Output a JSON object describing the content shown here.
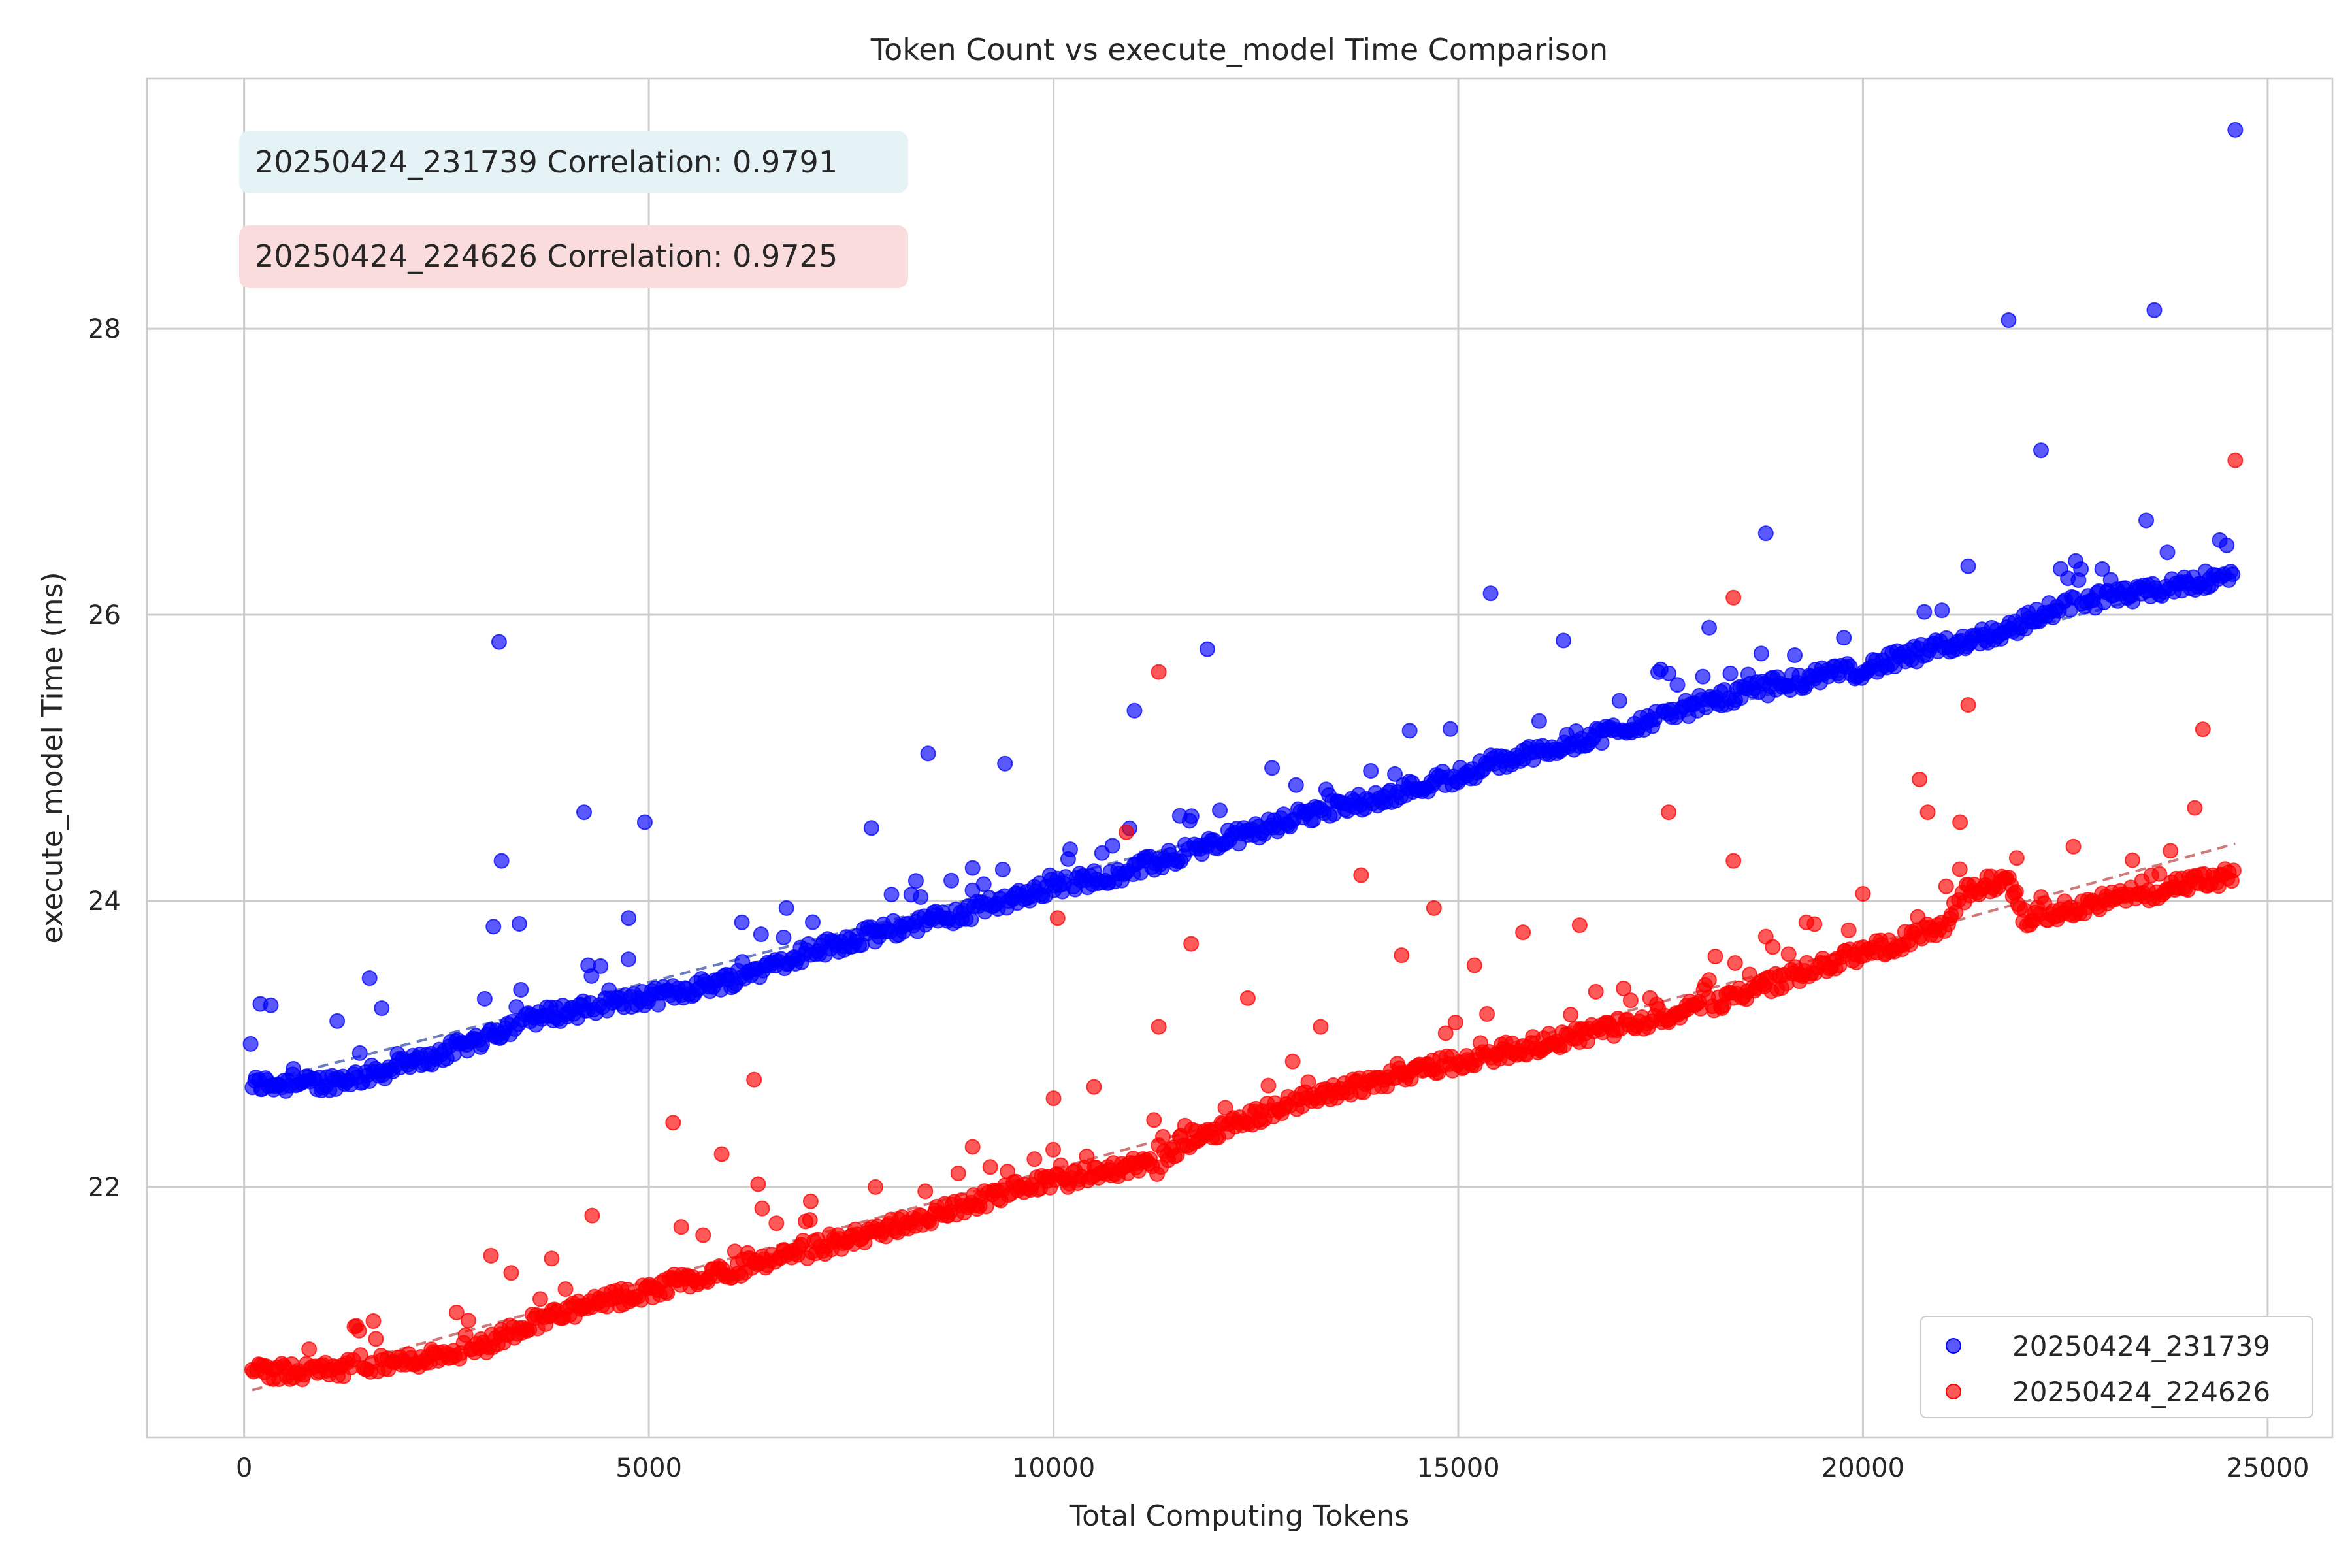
{
  "chart_data": {
    "type": "scatter",
    "title": "Token Count vs execute_model Time Comparison",
    "xlabel": "Total Computing Tokens",
    "ylabel": "execute_model Time (ms)",
    "xlim": [
      -1200,
      25800
    ],
    "ylim": [
      20.25,
      29.75
    ],
    "xticks": [
      0,
      5000,
      10000,
      15000,
      20000,
      25000
    ],
    "yticks": [
      22,
      24,
      26,
      28
    ],
    "grid": true,
    "legend_position": "lower-right",
    "annotations": [
      {
        "text": "20250424_231739 Correlation: 0.9791",
        "bg": "#e6f3f6"
      },
      {
        "text": "20250424_224626 Correlation: 0.9725",
        "bg": "#f9dcdb"
      }
    ],
    "series": [
      {
        "name": "20250424_231739",
        "color": "#0000ff",
        "trend": [
          [
            100,
            22.72
          ],
          [
            24600,
            26.28
          ]
        ],
        "trend_color": "#5b6fb8",
        "outliers": [
          [
            80,
            23.0
          ],
          [
            200,
            23.28
          ],
          [
            330,
            23.27
          ],
          [
            1150,
            23.16
          ],
          [
            1550,
            23.46
          ],
          [
            1700,
            23.25
          ],
          [
            3150,
            25.81
          ],
          [
            3180,
            24.28
          ],
          [
            3080,
            23.82
          ],
          [
            3400,
            23.84
          ],
          [
            4200,
            24.62
          ],
          [
            4250,
            23.55
          ],
          [
            4950,
            24.55
          ],
          [
            4750,
            23.88
          ],
          [
            6150,
            23.85
          ],
          [
            6700,
            23.95
          ],
          [
            7750,
            24.51
          ],
          [
            8450,
            25.03
          ],
          [
            8300,
            24.14
          ],
          [
            9000,
            24.23
          ],
          [
            9400,
            24.96
          ],
          [
            11000,
            25.33
          ],
          [
            11900,
            25.76
          ],
          [
            12700,
            24.93
          ],
          [
            14400,
            25.19
          ],
          [
            15400,
            26.15
          ],
          [
            16300,
            25.82
          ],
          [
            17600,
            25.59
          ],
          [
            18100,
            25.91
          ],
          [
            18800,
            26.57
          ],
          [
            21800,
            28.06
          ],
          [
            22200,
            27.15
          ],
          [
            23600,
            28.13
          ],
          [
            23500,
            26.66
          ],
          [
            24600,
            29.39
          ],
          [
            21300,
            26.34
          ]
        ],
        "segments": [
          [
            100,
            22.72
          ],
          [
            900,
            22.72
          ],
          [
            1500,
            22.78
          ],
          [
            2300,
            22.9
          ],
          [
            3000,
            23.05
          ],
          [
            3500,
            23.18
          ],
          [
            5000,
            23.32
          ],
          [
            6000,
            23.45
          ],
          [
            7000,
            23.65
          ],
          [
            8000,
            23.8
          ],
          [
            9000,
            23.93
          ],
          [
            10000,
            24.1
          ],
          [
            11000,
            24.22
          ],
          [
            12000,
            24.4
          ],
          [
            13000,
            24.58
          ],
          [
            14000,
            24.72
          ],
          [
            15000,
            24.88
          ],
          [
            16000,
            25.05
          ],
          [
            17000,
            25.2
          ],
          [
            18000,
            25.38
          ],
          [
            19000,
            25.52
          ],
          [
            20000,
            25.62
          ],
          [
            21000,
            25.78
          ],
          [
            21800,
            25.9
          ],
          [
            22500,
            26.08
          ],
          [
            23500,
            26.15
          ],
          [
            24600,
            26.3
          ]
        ]
      },
      {
        "name": "20250424_224626",
        "color": "#ff0000",
        "trend": [
          [
            100,
            20.58
          ],
          [
            24600,
            24.4
          ]
        ],
        "trend_color": "#c96b6b",
        "outliers": [
          [
            3050,
            21.52
          ],
          [
            3300,
            21.4
          ],
          [
            3800,
            21.5
          ],
          [
            4300,
            21.8
          ],
          [
            5300,
            22.45
          ],
          [
            5400,
            21.72
          ],
          [
            5900,
            22.23
          ],
          [
            6300,
            22.75
          ],
          [
            6350,
            22.02
          ],
          [
            6400,
            21.85
          ],
          [
            7000,
            21.9
          ],
          [
            7800,
            22.0
          ],
          [
            9000,
            22.28
          ],
          [
            10000,
            22.62
          ],
          [
            10050,
            23.88
          ],
          [
            10500,
            22.7
          ],
          [
            10900,
            24.48
          ],
          [
            11300,
            25.6
          ],
          [
            11300,
            23.12
          ],
          [
            11700,
            23.7
          ],
          [
            12400,
            23.32
          ],
          [
            13300,
            23.12
          ],
          [
            13800,
            24.18
          ],
          [
            14300,
            23.62
          ],
          [
            14700,
            23.95
          ],
          [
            15200,
            23.55
          ],
          [
            15800,
            23.78
          ],
          [
            16500,
            23.83
          ],
          [
            17600,
            24.62
          ],
          [
            18400,
            26.12
          ],
          [
            18400,
            24.28
          ],
          [
            18800,
            23.75
          ],
          [
            19300,
            23.85
          ],
          [
            20000,
            24.05
          ],
          [
            20700,
            24.85
          ],
          [
            20800,
            24.62
          ],
          [
            21200,
            24.55
          ],
          [
            21300,
            25.37
          ],
          [
            21900,
            24.3
          ],
          [
            22600,
            24.38
          ],
          [
            23800,
            24.35
          ],
          [
            24100,
            24.65
          ],
          [
            24200,
            25.2
          ],
          [
            24600,
            27.08
          ]
        ],
        "segments": [
          [
            100,
            20.7
          ],
          [
            1000,
            20.72
          ],
          [
            2000,
            20.78
          ],
          [
            3000,
            20.9
          ],
          [
            3500,
            21.05
          ],
          [
            5000,
            21.28
          ],
          [
            6500,
            21.48
          ],
          [
            8000,
            21.72
          ],
          [
            9500,
            21.98
          ],
          [
            11000,
            22.15
          ],
          [
            11300,
            22.15
          ],
          [
            11600,
            22.32
          ],
          [
            13000,
            22.6
          ],
          [
            14500,
            22.82
          ],
          [
            16000,
            23.0
          ],
          [
            17500,
            23.18
          ],
          [
            18500,
            23.35
          ],
          [
            19500,
            23.55
          ],
          [
            20500,
            23.72
          ],
          [
            21000,
            23.82
          ],
          [
            21300,
            24.08
          ],
          [
            21800,
            24.15
          ],
          [
            22000,
            23.88
          ],
          [
            23000,
            24.0
          ],
          [
            24600,
            24.18
          ]
        ]
      }
    ]
  }
}
